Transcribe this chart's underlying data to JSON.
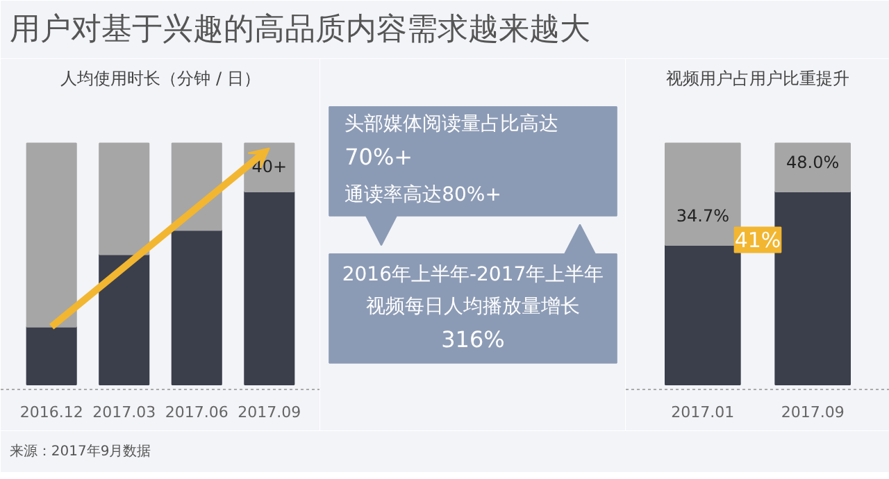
{
  "chart_data": [
    {
      "type": "bar",
      "title": "用户对基于兴趣的高品质内容需求越来越大",
      "subtitle": "人均使用时长（分钟 / 日）",
      "categories": [
        "2016.12",
        "2017.03",
        "2017.06",
        "2017.09"
      ],
      "stacked": true,
      "grid": false,
      "annotations": [
        "来源：2017年9月数据"
      ],
      "series": [
        {
          "color": "#3b3f4c",
          "values": [
            12,
            27,
            32,
            40
          ],
          "value_labels": [
            null,
            null,
            null,
            "40+"
          ]
        },
        {
          "color": "#a6a6a6",
          "values": [
            38,
            23,
            18,
            10
          ]
        }
      ]
    },
    {
      "type": "other",
      "annotations": [
        "头部媒体阅读量占比高达",
        "70%+",
        "通读率高达80%+",
        "2016年上半年-2017年上半年",
        "视频每日人均播放量增长",
        "316%"
      ]
    },
    {
      "type": "bar",
      "title": "视频用户占用户比重提升",
      "categories": [
        "2017.01",
        "2017.09"
      ],
      "stacked": true,
      "grid": false,
      "annotations": [
        "41%"
      ],
      "series": [
        {
          "color": "#3b3f4c",
          "values": [
            34.7,
            48.0
          ],
          "value_labels": [
            "34.7%",
            "48.0%"
          ]
        },
        {
          "color": "#a6a6a6",
          "values": [
            25.3,
            12.0
          ]
        }
      ]
    }
  ]
}
